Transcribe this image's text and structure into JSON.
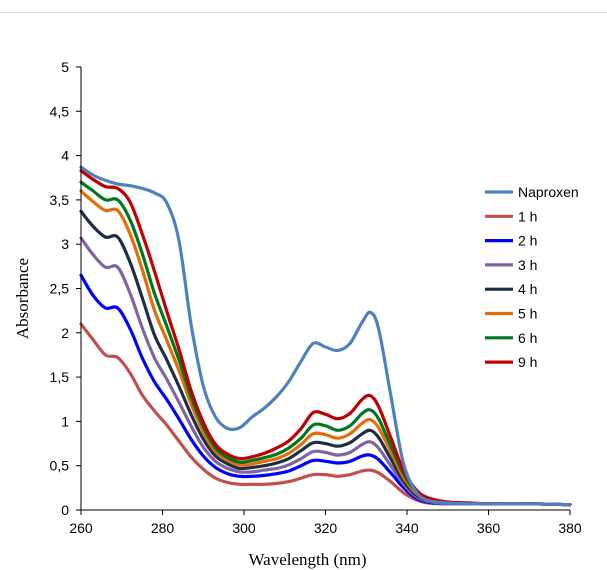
{
  "chart_data": {
    "type": "line",
    "xlabel": "Wavelength (nm)",
    "ylabel": "Absorbance",
    "xlim": [
      260,
      380
    ],
    "ylim": [
      0,
      5
    ],
    "x_ticks": [
      "260",
      "280",
      "300",
      "320",
      "340",
      "360",
      "380"
    ],
    "y_ticks": [
      "0",
      "0,5",
      "1",
      "1,5",
      "2",
      "2,5",
      "3",
      "3,5",
      "4",
      "4,5",
      "5"
    ],
    "grid": false,
    "legend_position": "right",
    "x": [
      260,
      263,
      266,
      269,
      272,
      275,
      278,
      281,
      284,
      287,
      290,
      293,
      296,
      299,
      302,
      305,
      308,
      311,
      314,
      317,
      320,
      323,
      326,
      329,
      331,
      333,
      336,
      339,
      342,
      345,
      350,
      355,
      360,
      370,
      380
    ],
    "series": [
      {
        "name": "Naproxen",
        "color": "#4F81BD",
        "values": [
          3.87,
          3.78,
          3.72,
          3.68,
          3.66,
          3.63,
          3.58,
          3.47,
          3.05,
          2.1,
          1.4,
          1.05,
          0.92,
          0.93,
          1.05,
          1.15,
          1.28,
          1.45,
          1.68,
          1.88,
          1.84,
          1.8,
          1.88,
          2.12,
          2.23,
          2.05,
          1.3,
          0.55,
          0.22,
          0.11,
          0.08,
          0.07,
          0.07,
          0.07,
          0.06
        ]
      },
      {
        "name": "1 h",
        "color": "#C0504D",
        "values": [
          2.1,
          1.92,
          1.75,
          1.72,
          1.55,
          1.3,
          1.12,
          0.96,
          0.78,
          0.6,
          0.46,
          0.36,
          0.31,
          0.29,
          0.29,
          0.29,
          0.3,
          0.32,
          0.36,
          0.4,
          0.4,
          0.38,
          0.4,
          0.44,
          0.45,
          0.42,
          0.32,
          0.2,
          0.12,
          0.08,
          0.07,
          0.07,
          0.07,
          0.07,
          0.06
        ]
      },
      {
        "name": "2 h",
        "color": "#0000FF",
        "values": [
          2.65,
          2.42,
          2.28,
          2.28,
          2.05,
          1.72,
          1.45,
          1.25,
          1.03,
          0.8,
          0.61,
          0.48,
          0.41,
          0.38,
          0.38,
          0.39,
          0.41,
          0.44,
          0.5,
          0.56,
          0.55,
          0.53,
          0.55,
          0.61,
          0.62,
          0.57,
          0.42,
          0.26,
          0.14,
          0.09,
          0.07,
          0.07,
          0.07,
          0.07,
          0.06
        ]
      },
      {
        "name": "3 h",
        "color": "#8064A2",
        "values": [
          3.07,
          2.88,
          2.74,
          2.74,
          2.45,
          2.06,
          1.72,
          1.48,
          1.22,
          0.95,
          0.71,
          0.55,
          0.47,
          0.43,
          0.43,
          0.45,
          0.47,
          0.51,
          0.58,
          0.66,
          0.65,
          0.62,
          0.65,
          0.74,
          0.77,
          0.7,
          0.5,
          0.3,
          0.16,
          0.1,
          0.07,
          0.07,
          0.07,
          0.07,
          0.06
        ]
      },
      {
        "name": "4 h",
        "color": "#1F2E44",
        "values": [
          3.37,
          3.2,
          3.08,
          3.08,
          2.8,
          2.4,
          1.98,
          1.7,
          1.4,
          1.08,
          0.8,
          0.61,
          0.52,
          0.47,
          0.48,
          0.5,
          0.53,
          0.58,
          0.67,
          0.76,
          0.75,
          0.72,
          0.76,
          0.86,
          0.9,
          0.82,
          0.58,
          0.34,
          0.18,
          0.11,
          0.08,
          0.07,
          0.07,
          0.07,
          0.06
        ]
      },
      {
        "name": "5 h",
        "color": "#E46C0A",
        "values": [
          3.6,
          3.48,
          3.38,
          3.38,
          3.12,
          2.72,
          2.26,
          1.92,
          1.58,
          1.2,
          0.88,
          0.66,
          0.56,
          0.51,
          0.52,
          0.55,
          0.58,
          0.64,
          0.74,
          0.86,
          0.85,
          0.81,
          0.86,
          0.98,
          1.02,
          0.93,
          0.66,
          0.38,
          0.2,
          0.12,
          0.08,
          0.07,
          0.07,
          0.07,
          0.06
        ]
      },
      {
        "name": "6 h",
        "color": "#00771F",
        "values": [
          3.7,
          3.6,
          3.5,
          3.5,
          3.28,
          2.9,
          2.45,
          2.08,
          1.7,
          1.28,
          0.94,
          0.7,
          0.59,
          0.54,
          0.56,
          0.59,
          0.63,
          0.7,
          0.81,
          0.96,
          0.95,
          0.9,
          0.95,
          1.09,
          1.13,
          1.03,
          0.73,
          0.42,
          0.22,
          0.13,
          0.08,
          0.07,
          0.07,
          0.07,
          0.06
        ]
      },
      {
        "name": "9 h",
        "color": "#C00000",
        "values": [
          3.83,
          3.73,
          3.65,
          3.63,
          3.48,
          3.12,
          2.7,
          2.25,
          1.82,
          1.35,
          0.99,
          0.74,
          0.63,
          0.58,
          0.6,
          0.64,
          0.7,
          0.78,
          0.92,
          1.1,
          1.08,
          1.03,
          1.09,
          1.25,
          1.29,
          1.17,
          0.82,
          0.46,
          0.24,
          0.14,
          0.09,
          0.08,
          0.07,
          0.07,
          0.06
        ]
      }
    ]
  }
}
